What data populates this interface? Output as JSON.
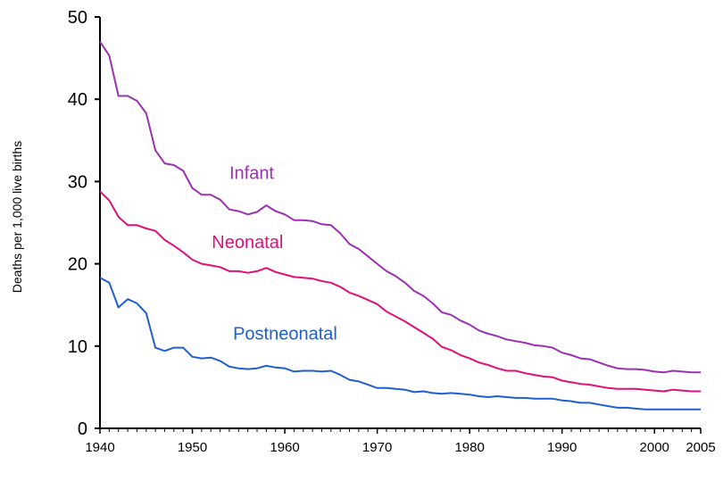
{
  "chart_data": {
    "type": "line",
    "title": "",
    "xlabel": "",
    "ylabel": "Deaths per 1,000 live births",
    "xlim": [
      1940,
      2005
    ],
    "ylim": [
      0,
      50
    ],
    "x_ticks": [
      1940,
      1950,
      1960,
      1970,
      1980,
      1990,
      2000,
      2005
    ],
    "y_ticks": [
      0,
      10,
      20,
      30,
      40,
      50
    ],
    "grid": false,
    "legend": "inline labels",
    "series": [
      {
        "name": "Infant",
        "color": "#9b30b0",
        "label_at": [
          1954.0,
          30.3
        ],
        "points": [
          [
            1940,
            47.0
          ],
          [
            1941,
            45.3
          ],
          [
            1942,
            40.4
          ],
          [
            1943,
            40.4
          ],
          [
            1944,
            39.8
          ],
          [
            1945,
            38.3
          ],
          [
            1946,
            33.8
          ],
          [
            1947,
            32.2
          ],
          [
            1948,
            32.0
          ],
          [
            1949,
            31.3
          ],
          [
            1950,
            29.2
          ],
          [
            1951,
            28.4
          ],
          [
            1952,
            28.4
          ],
          [
            1953,
            27.8
          ],
          [
            1954,
            26.6
          ],
          [
            1955,
            26.4
          ],
          [
            1956,
            26.0
          ],
          [
            1957,
            26.3
          ],
          [
            1958,
            27.1
          ],
          [
            1959,
            26.4
          ],
          [
            1960,
            26.0
          ],
          [
            1961,
            25.3
          ],
          [
            1962,
            25.3
          ],
          [
            1963,
            25.2
          ],
          [
            1964,
            24.8
          ],
          [
            1965,
            24.7
          ],
          [
            1966,
            23.7
          ],
          [
            1967,
            22.4
          ],
          [
            1968,
            21.8
          ],
          [
            1969,
            20.9
          ],
          [
            1970,
            20.0
          ],
          [
            1971,
            19.1
          ],
          [
            1972,
            18.5
          ],
          [
            1973,
            17.7
          ],
          [
            1974,
            16.7
          ],
          [
            1975,
            16.1
          ],
          [
            1976,
            15.2
          ],
          [
            1977,
            14.1
          ],
          [
            1978,
            13.8
          ],
          [
            1979,
            13.1
          ],
          [
            1980,
            12.6
          ],
          [
            1981,
            11.9
          ],
          [
            1982,
            11.5
          ],
          [
            1983,
            11.2
          ],
          [
            1984,
            10.8
          ],
          [
            1985,
            10.6
          ],
          [
            1986,
            10.4
          ],
          [
            1987,
            10.1
          ],
          [
            1988,
            10.0
          ],
          [
            1989,
            9.8
          ],
          [
            1990,
            9.2
          ],
          [
            1991,
            8.9
          ],
          [
            1992,
            8.5
          ],
          [
            1993,
            8.4
          ],
          [
            1994,
            8.0
          ],
          [
            1995,
            7.6
          ],
          [
            1996,
            7.3
          ],
          [
            1997,
            7.2
          ],
          [
            1998,
            7.2
          ],
          [
            1999,
            7.1
          ],
          [
            2000,
            6.9
          ],
          [
            2001,
            6.8
          ],
          [
            2002,
            7.0
          ],
          [
            2003,
            6.9
          ],
          [
            2004,
            6.8
          ],
          [
            2005,
            6.8
          ]
        ]
      },
      {
        "name": "Neonatal",
        "color": "#e0107a",
        "label_at": [
          1952.1,
          21.9
        ],
        "points": [
          [
            1940,
            28.8
          ],
          [
            1941,
            27.7
          ],
          [
            1942,
            25.7
          ],
          [
            1943,
            24.7
          ],
          [
            1944,
            24.7
          ],
          [
            1945,
            24.3
          ],
          [
            1946,
            24.0
          ],
          [
            1947,
            22.9
          ],
          [
            1948,
            22.2
          ],
          [
            1949,
            21.4
          ],
          [
            1950,
            20.5
          ],
          [
            1951,
            20.0
          ],
          [
            1952,
            19.8
          ],
          [
            1953,
            19.6
          ],
          [
            1954,
            19.1
          ],
          [
            1955,
            19.1
          ],
          [
            1956,
            18.9
          ],
          [
            1957,
            19.1
          ],
          [
            1958,
            19.5
          ],
          [
            1959,
            19.0
          ],
          [
            1960,
            18.7
          ],
          [
            1961,
            18.4
          ],
          [
            1962,
            18.3
          ],
          [
            1963,
            18.2
          ],
          [
            1964,
            17.9
          ],
          [
            1965,
            17.7
          ],
          [
            1966,
            17.2
          ],
          [
            1967,
            16.5
          ],
          [
            1968,
            16.1
          ],
          [
            1969,
            15.6
          ],
          [
            1970,
            15.1
          ],
          [
            1971,
            14.2
          ],
          [
            1972,
            13.6
          ],
          [
            1973,
            13.0
          ],
          [
            1974,
            12.3
          ],
          [
            1975,
            11.6
          ],
          [
            1976,
            10.9
          ],
          [
            1977,
            9.9
          ],
          [
            1978,
            9.5
          ],
          [
            1979,
            8.9
          ],
          [
            1980,
            8.5
          ],
          [
            1981,
            8.0
          ],
          [
            1982,
            7.7
          ],
          [
            1983,
            7.3
          ],
          [
            1984,
            7.0
          ],
          [
            1985,
            7.0
          ],
          [
            1986,
            6.7
          ],
          [
            1987,
            6.5
          ],
          [
            1988,
            6.3
          ],
          [
            1989,
            6.2
          ],
          [
            1990,
            5.8
          ],
          [
            1991,
            5.6
          ],
          [
            1992,
            5.4
          ],
          [
            1993,
            5.3
          ],
          [
            1994,
            5.1
          ],
          [
            1995,
            4.9
          ],
          [
            1996,
            4.8
          ],
          [
            1997,
            4.8
          ],
          [
            1998,
            4.8
          ],
          [
            1999,
            4.7
          ],
          [
            2000,
            4.6
          ],
          [
            2001,
            4.5
          ],
          [
            2002,
            4.7
          ],
          [
            2003,
            4.6
          ],
          [
            2004,
            4.5
          ],
          [
            2005,
            4.5
          ]
        ]
      },
      {
        "name": "Postneonatal",
        "color": "#1f5fd0",
        "label_at": [
          1954.4,
          10.8
        ],
        "points": [
          [
            1940,
            18.3
          ],
          [
            1941,
            17.7
          ],
          [
            1942,
            14.7
          ],
          [
            1943,
            15.7
          ],
          [
            1944,
            15.2
          ],
          [
            1945,
            14.0
          ],
          [
            1946,
            9.8
          ],
          [
            1947,
            9.4
          ],
          [
            1948,
            9.8
          ],
          [
            1949,
            9.8
          ],
          [
            1950,
            8.7
          ],
          [
            1951,
            8.5
          ],
          [
            1952,
            8.6
          ],
          [
            1953,
            8.2
          ],
          [
            1954,
            7.5
          ],
          [
            1955,
            7.3
          ],
          [
            1956,
            7.2
          ],
          [
            1957,
            7.3
          ],
          [
            1958,
            7.6
          ],
          [
            1959,
            7.4
          ],
          [
            1960,
            7.3
          ],
          [
            1961,
            6.9
          ],
          [
            1962,
            7.0
          ],
          [
            1963,
            7.0
          ],
          [
            1964,
            6.9
          ],
          [
            1965,
            7.0
          ],
          [
            1966,
            6.5
          ],
          [
            1967,
            5.9
          ],
          [
            1968,
            5.7
          ],
          [
            1969,
            5.3
          ],
          [
            1970,
            4.9
          ],
          [
            1971,
            4.9
          ],
          [
            1972,
            4.8
          ],
          [
            1973,
            4.7
          ],
          [
            1974,
            4.4
          ],
          [
            1975,
            4.5
          ],
          [
            1976,
            4.3
          ],
          [
            1977,
            4.2
          ],
          [
            1978,
            4.3
          ],
          [
            1979,
            4.2
          ],
          [
            1980,
            4.1
          ],
          [
            1981,
            3.9
          ],
          [
            1982,
            3.8
          ],
          [
            1983,
            3.9
          ],
          [
            1984,
            3.8
          ],
          [
            1985,
            3.7
          ],
          [
            1986,
            3.7
          ],
          [
            1987,
            3.6
          ],
          [
            1988,
            3.6
          ],
          [
            1989,
            3.6
          ],
          [
            1990,
            3.4
          ],
          [
            1991,
            3.3
          ],
          [
            1992,
            3.1
          ],
          [
            1993,
            3.1
          ],
          [
            1994,
            2.9
          ],
          [
            1995,
            2.7
          ],
          [
            1996,
            2.5
          ],
          [
            1997,
            2.5
          ],
          [
            1998,
            2.4
          ],
          [
            1999,
            2.3
          ],
          [
            2000,
            2.3
          ],
          [
            2001,
            2.3
          ],
          [
            2002,
            2.3
          ],
          [
            2003,
            2.3
          ],
          [
            2004,
            2.3
          ],
          [
            2005,
            2.3
          ]
        ]
      }
    ]
  }
}
